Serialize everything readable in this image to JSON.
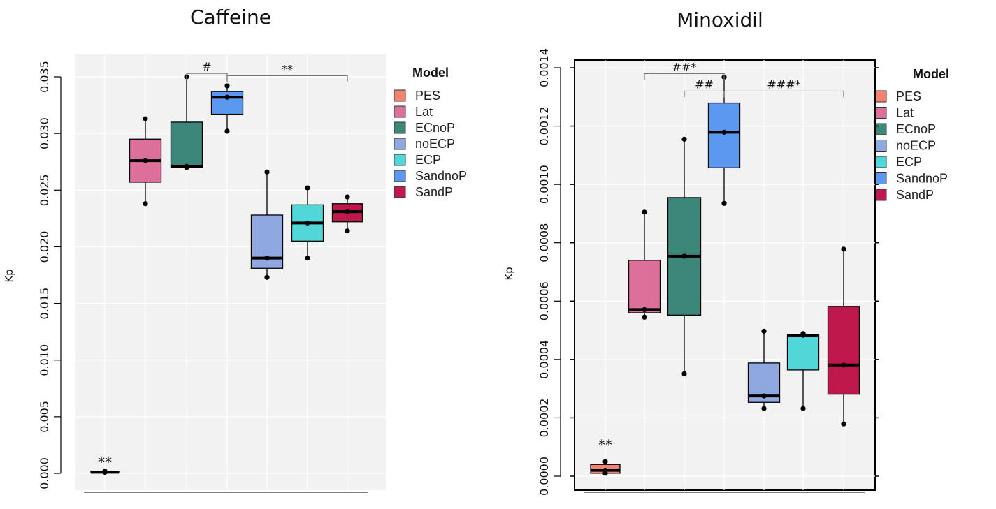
{
  "models": [
    {
      "name": "PES",
      "color": "#f4826f"
    },
    {
      "name": "Lat",
      "color": "#dc709b"
    },
    {
      "name": "ECnoP",
      "color": "#3d877a"
    },
    {
      "name": "noECP",
      "color": "#8fa8df"
    },
    {
      "name": "ECP",
      "color": "#50d8d8"
    },
    {
      "name": "SandnoP",
      "color": "#5b98f0"
    },
    {
      "name": "SandP",
      "color": "#be184c"
    }
  ],
  "legend_title": "Model",
  "chart_data": [
    {
      "type": "box",
      "title": "Caffeine",
      "ylabel": "Kp",
      "xlabel": "",
      "ylim": [
        -0.0012,
        0.0365
      ],
      "y_ticks": [
        "0.000",
        "0.005",
        "0.010",
        "0.015",
        "0.020",
        "0.025",
        "0.030",
        "0.035"
      ],
      "grid": true,
      "legend_position": "right",
      "boxes": [
        {
          "model": "PES",
          "min": 0.0001,
          "q1": 0.0001,
          "median": 0.0001,
          "q3": 0.0002,
          "max": 0.0002
        },
        {
          "model": "Lat",
          "min": 0.0238,
          "q1": 0.0257,
          "median": 0.0276,
          "q3": 0.0295,
          "max": 0.0313
        },
        {
          "model": "ECnoP",
          "min": 0.027,
          "q1": 0.027,
          "median": 0.0271,
          "q3": 0.031,
          "max": 0.035
        },
        {
          "model": "SandnoP",
          "min": 0.0302,
          "q1": 0.0317,
          "median": 0.0332,
          "q3": 0.0337,
          "max": 0.0342
        },
        {
          "model": "noECP",
          "min": 0.0173,
          "q1": 0.0181,
          "median": 0.019,
          "q3": 0.0228,
          "max": 0.0266
        },
        {
          "model": "ECP",
          "min": 0.019,
          "q1": 0.0205,
          "median": 0.0221,
          "q3": 0.0237,
          "max": 0.0252
        },
        {
          "model": "SandP",
          "min": 0.0214,
          "q1": 0.0222,
          "median": 0.0231,
          "q3": 0.0238,
          "max": 0.0244
        }
      ],
      "annotations": [
        {
          "text": "**",
          "type": "stars",
          "box": 0,
          "y": 0.0003
        },
        {
          "text": "#",
          "type": "bracket",
          "from": 2,
          "to": 3,
          "y": 0.0353
        },
        {
          "text": "**",
          "type": "bracket",
          "from": 3,
          "to": 6,
          "y": 0.0351
        }
      ]
    },
    {
      "type": "box",
      "title": "Minoxidil",
      "ylabel": "Kp",
      "xlabel": "",
      "ylim": [
        -5e-05,
        0.00143
      ],
      "y_ticks": [
        "0.0000",
        "0.0002",
        "0.0004",
        "0.0006",
        "0.0008",
        "0.0010",
        "0.0012",
        "0.0014"
      ],
      "grid": true,
      "legend_position": "right",
      "boxes": [
        {
          "model": "PES",
          "min": 1e-05,
          "q1": 1e-05,
          "median": 2e-05,
          "q3": 4e-05,
          "max": 5e-05
        },
        {
          "model": "Lat",
          "min": 0.000545,
          "q1": 0.00056,
          "median": 0.000571,
          "q3": 0.00074,
          "max": 0.000905
        },
        {
          "model": "ECnoP",
          "min": 0.000351,
          "q1": 0.000552,
          "median": 0.000754,
          "q3": 0.000955,
          "max": 0.001155
        },
        {
          "model": "SandnoP",
          "min": 0.000935,
          "q1": 0.001057,
          "median": 0.001179,
          "q3": 0.001279,
          "max": 0.001368
        },
        {
          "model": "noECP",
          "min": 0.000232,
          "q1": 0.000253,
          "median": 0.000275,
          "q3": 0.000388,
          "max": 0.000497
        },
        {
          "model": "ECP",
          "min": 0.000232,
          "q1": 0.000364,
          "median": 0.000483,
          "q3": 0.000486,
          "max": 0.000489
        },
        {
          "model": "SandP",
          "min": 0.000179,
          "q1": 0.000281,
          "median": 0.000381,
          "q3": 0.000582,
          "max": 0.000778
        }
      ],
      "annotations": [
        {
          "text": "**",
          "type": "stars",
          "box": 0,
          "y": 8e-05
        },
        {
          "text": "##*",
          "type": "bracket",
          "from": 1,
          "to": 3,
          "y": 0.00138
        },
        {
          "text": "##",
          "type": "bracket",
          "from": 2,
          "to": 3,
          "y": 0.00132
        },
        {
          "text": "###*",
          "type": "bracket",
          "from": 3,
          "to": 6,
          "y": 0.00132
        }
      ]
    }
  ]
}
